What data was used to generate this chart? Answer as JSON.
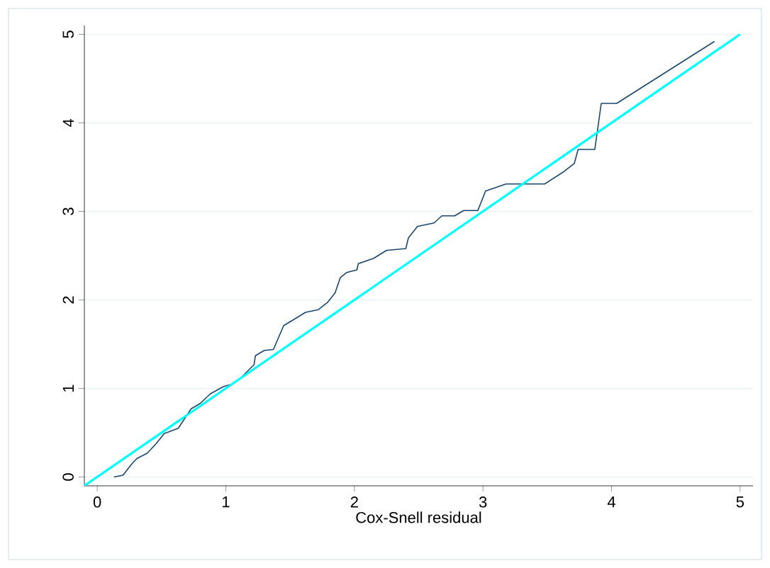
{
  "chart_data": {
    "type": "line",
    "xlabel": "Cox-Snell residual",
    "xlim": [
      -0.1,
      5.1
    ],
    "ylim": [
      -0.1,
      5.1
    ],
    "xticks": [
      0,
      1,
      2,
      3,
      4,
      5
    ],
    "yticks": [
      0,
      1,
      2,
      3,
      4,
      5
    ],
    "grid": "y",
    "marker": "none",
    "line_style": "solid",
    "series": [
      {
        "color": "#1a476f",
        "x": [
          0.13,
          0.2,
          0.27,
          0.31,
          0.39,
          0.46,
          0.52,
          0.63,
          0.73,
          0.8,
          0.88,
          0.98,
          1.05,
          1.11,
          1.22,
          1.23,
          1.3,
          1.37,
          1.45,
          1.53,
          1.62,
          1.72,
          1.79,
          1.85,
          1.89,
          1.94,
          2.02,
          2.03,
          2.15,
          2.25,
          2.4,
          2.42,
          2.49,
          2.62,
          2.68,
          2.78,
          2.85,
          2.96,
          3.02,
          3.18,
          3.48,
          3.63,
          3.71,
          3.74,
          3.87,
          3.92,
          4.04,
          4.8
        ],
        "values": [
          0,
          0.02,
          0.15,
          0.21,
          0.27,
          0.38,
          0.49,
          0.55,
          0.77,
          0.83,
          0.94,
          1.02,
          1.05,
          1.11,
          1.27,
          1.37,
          1.43,
          1.44,
          1.71,
          1.78,
          1.86,
          1.89,
          1.97,
          2.08,
          2.25,
          2.31,
          2.34,
          2.41,
          2.47,
          2.56,
          2.58,
          2.7,
          2.83,
          2.87,
          2.95,
          2.95,
          3.01,
          3.01,
          3.23,
          3.31,
          3.31,
          3.45,
          3.54,
          3.7,
          3.7,
          4.22,
          4.22,
          4.92
        ]
      },
      {
        "color": "#00ffff",
        "x": [
          -0.1,
          5
        ],
        "values": [
          -0.1,
          5
        ]
      }
    ]
  }
}
